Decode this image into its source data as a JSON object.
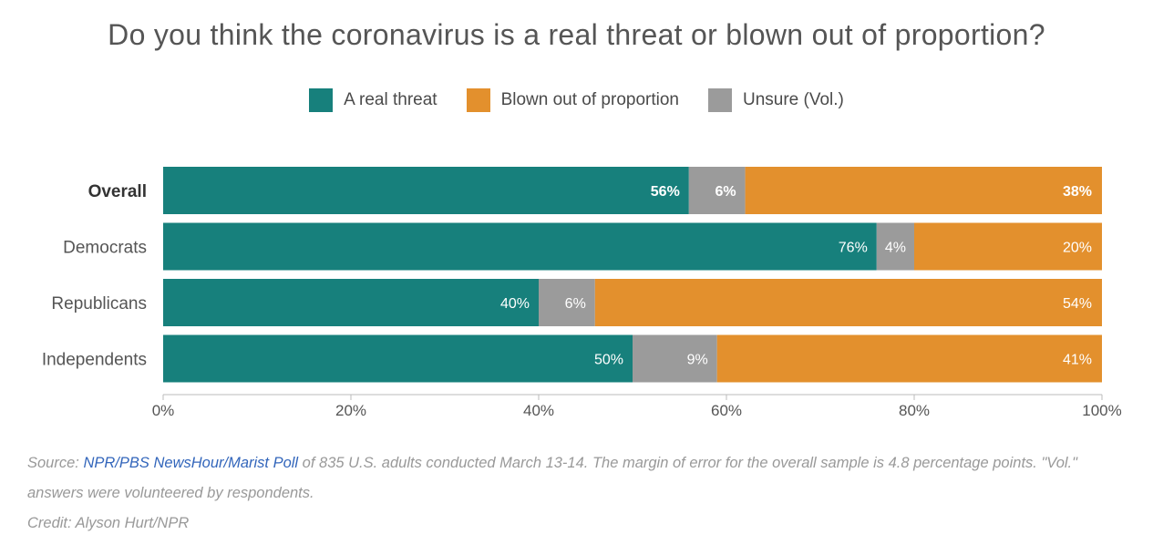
{
  "title": "Do you think the coronavirus is a real threat or blown out of proportion?",
  "legend": [
    {
      "label": "A real threat",
      "color": "#17807c"
    },
    {
      "label": "Blown out of proportion",
      "color": "#e3902d"
    },
    {
      "label": "Unsure (Vol.)",
      "color": "#9b9b9b"
    }
  ],
  "chart_data": {
    "type": "bar",
    "orientation": "horizontal",
    "stacked": true,
    "categories": [
      "Overall",
      "Democrats",
      "Republicans",
      "Independents"
    ],
    "bold_category": "Overall",
    "series": [
      {
        "name": "A real threat",
        "values": [
          56,
          76,
          40,
          50
        ],
        "labels": [
          "56%",
          "76%",
          "40%",
          "50%"
        ],
        "color": "#17807c"
      },
      {
        "name": "Unsure (Vol.)",
        "values": [
          6,
          4,
          6,
          9
        ],
        "labels": [
          "6%",
          "4%",
          "6%",
          "9%"
        ],
        "color": "#9b9b9b"
      },
      {
        "name": "Blown out of proportion",
        "values": [
          38,
          20,
          54,
          41
        ],
        "labels": [
          "38%",
          "20%",
          "54%",
          "41%"
        ],
        "color": "#e3902d"
      }
    ],
    "xlim": [
      0,
      100
    ],
    "xticks": [
      0,
      20,
      40,
      60,
      80,
      100
    ],
    "xtick_labels": [
      "0%",
      "20%",
      "40%",
      "60%",
      "80%",
      "100%"
    ]
  },
  "footer": {
    "source_prefix": "Source: ",
    "source_link": "NPR/PBS NewsHour/Marist Poll",
    "source_text": " of 835 U.S. adults conducted March 13-14. The margin of error for the overall sample is 4.8 percentage points. \"Vol.\" answers were volunteered by respondents.",
    "credit": "Credit: Alyson Hurt/NPR"
  }
}
